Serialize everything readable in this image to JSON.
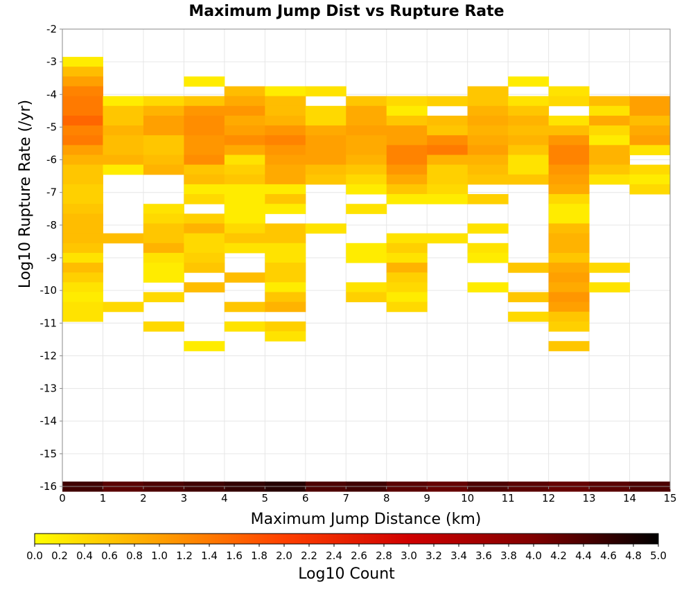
{
  "chart_data": {
    "type": "heatmap",
    "title": "Maximum Jump Dist vs Rupture Rate",
    "xlabel": "Maximum Jump Distance (km)",
    "ylabel": "Log10 Rupture Rate (/yr)",
    "xlim": [
      0,
      15
    ],
    "ylim": [
      -16,
      -2
    ],
    "x_ticks": [
      "0",
      "1",
      "2",
      "3",
      "4",
      "5",
      "6",
      "7",
      "8",
      "9",
      "10",
      "11",
      "12",
      "13",
      "14",
      "15"
    ],
    "y_ticks": [
      "-2",
      "-3",
      "-4",
      "-5",
      "-6",
      "-7",
      "-8",
      "-9",
      "-10",
      "-11",
      "-12",
      "-13",
      "-14",
      "-15",
      "-16"
    ],
    "grid": true,
    "colorbar": {
      "label": "Log10 Count",
      "range": [
        0,
        5
      ],
      "ticks": [
        "0.0",
        "0.2",
        "0.4",
        "0.6",
        "0.8",
        "1.0",
        "1.2",
        "1.4",
        "1.6",
        "1.8",
        "2.0",
        "2.2",
        "2.4",
        "2.6",
        "2.8",
        "3.0",
        "3.2",
        "3.4",
        "3.6",
        "3.8",
        "4.0",
        "4.2",
        "4.4",
        "4.6",
        "4.8",
        "5.0"
      ],
      "colors": [
        "#ffff00",
        "#ffa000",
        "#ff4000",
        "#d00000",
        "#800000",
        "#000000"
      ]
    },
    "x_bin_width": 1,
    "y_bin_height": 0.3,
    "bins": [
      {
        "x": 0,
        "cells": [
          [
            -3.0,
            0.2
          ],
          [
            -3.3,
            0.7
          ],
          [
            -3.6,
            1.0
          ],
          [
            -3.9,
            1.3
          ],
          [
            -4.2,
            1.4
          ],
          [
            -4.5,
            1.4
          ],
          [
            -4.8,
            1.6
          ],
          [
            -5.1,
            1.3
          ],
          [
            -5.4,
            1.4
          ],
          [
            -5.7,
            1.0
          ],
          [
            -6.0,
            0.8
          ],
          [
            -6.3,
            0.6
          ],
          [
            -6.6,
            0.6
          ],
          [
            -6.9,
            0.5
          ],
          [
            -7.2,
            0.5
          ],
          [
            -7.5,
            0.6
          ],
          [
            -7.8,
            0.7
          ],
          [
            -8.1,
            0.7
          ],
          [
            -8.4,
            0.7
          ],
          [
            -8.7,
            0.6
          ],
          [
            -9.0,
            0.3
          ],
          [
            -9.3,
            0.7
          ],
          [
            -9.6,
            0.5
          ],
          [
            -9.9,
            0.3
          ],
          [
            -10.2,
            0.2
          ],
          [
            -10.5,
            0.3
          ],
          [
            -10.8,
            0.3
          ],
          [
            -16.0,
            4.5
          ]
        ]
      },
      {
        "x": 1,
        "cells": [
          [
            -4.2,
            0.2
          ],
          [
            -4.5,
            0.6
          ],
          [
            -4.8,
            0.6
          ],
          [
            -5.1,
            0.8
          ],
          [
            -5.4,
            0.7
          ],
          [
            -5.7,
            0.7
          ],
          [
            -6.0,
            0.8
          ],
          [
            -6.3,
            0.2
          ],
          [
            -8.4,
            0.7
          ],
          [
            -10.5,
            0.4
          ],
          [
            -16.0,
            4.3
          ]
        ]
      },
      {
        "x": 2,
        "cells": [
          [
            -4.2,
            0.4
          ],
          [
            -4.5,
            0.8
          ],
          [
            -4.8,
            1.0
          ],
          [
            -5.1,
            1.0
          ],
          [
            -5.4,
            0.6
          ],
          [
            -5.7,
            0.6
          ],
          [
            -6.0,
            0.7
          ],
          [
            -6.3,
            0.8
          ],
          [
            -7.5,
            0.3
          ],
          [
            -7.8,
            0.4
          ],
          [
            -8.1,
            0.6
          ],
          [
            -8.4,
            0.6
          ],
          [
            -8.7,
            0.8
          ],
          [
            -9.0,
            0.3
          ],
          [
            -9.3,
            0.2
          ],
          [
            -9.6,
            0.2
          ],
          [
            -10.2,
            0.4
          ],
          [
            -11.1,
            0.4
          ],
          [
            -16.0,
            4.4
          ]
        ]
      },
      {
        "x": 3,
        "cells": [
          [
            -3.6,
            0.2
          ],
          [
            -4.2,
            0.6
          ],
          [
            -4.5,
            1.1
          ],
          [
            -4.8,
            1.2
          ],
          [
            -5.1,
            1.2
          ],
          [
            -5.4,
            1.1
          ],
          [
            -5.7,
            1.1
          ],
          [
            -6.0,
            1.2
          ],
          [
            -6.3,
            0.6
          ],
          [
            -6.6,
            0.7
          ],
          [
            -6.9,
            0.2
          ],
          [
            -7.2,
            0.4
          ],
          [
            -7.8,
            0.5
          ],
          [
            -8.1,
            0.8
          ],
          [
            -8.4,
            0.4
          ],
          [
            -8.7,
            0.4
          ],
          [
            -9.0,
            0.5
          ],
          [
            -9.3,
            0.6
          ],
          [
            -9.9,
            0.7
          ],
          [
            -11.7,
            0.2
          ],
          [
            -16.0,
            4.5
          ]
        ]
      },
      {
        "x": 4,
        "cells": [
          [
            -3.9,
            0.7
          ],
          [
            -4.2,
            0.9
          ],
          [
            -4.5,
            1.1
          ],
          [
            -4.8,
            0.9
          ],
          [
            -5.1,
            1.0
          ],
          [
            -5.4,
            1.2
          ],
          [
            -5.7,
            0.9
          ],
          [
            -6.0,
            0.3
          ],
          [
            -6.3,
            0.5
          ],
          [
            -6.6,
            0.6
          ],
          [
            -6.9,
            0.2
          ],
          [
            -7.2,
            0.2
          ],
          [
            -7.5,
            0.2
          ],
          [
            -7.8,
            0.2
          ],
          [
            -8.1,
            0.4
          ],
          [
            -8.4,
            0.6
          ],
          [
            -8.7,
            0.3
          ],
          [
            -9.6,
            0.7
          ],
          [
            -10.5,
            0.6
          ],
          [
            -11.1,
            0.3
          ],
          [
            -16.0,
            4.6
          ]
        ]
      },
      {
        "x": 5,
        "cells": [
          [
            -3.9,
            0.2
          ],
          [
            -4.2,
            0.7
          ],
          [
            -4.5,
            0.7
          ],
          [
            -4.8,
            0.8
          ],
          [
            -5.1,
            1.1
          ],
          [
            -5.4,
            1.3
          ],
          [
            -5.7,
            1.1
          ],
          [
            -6.0,
            1.0
          ],
          [
            -6.3,
            0.9
          ],
          [
            -6.6,
            0.9
          ],
          [
            -6.9,
            0.2
          ],
          [
            -7.2,
            0.6
          ],
          [
            -7.5,
            0.2
          ],
          [
            -8.1,
            0.6
          ],
          [
            -8.4,
            0.6
          ],
          [
            -8.7,
            0.3
          ],
          [
            -9.0,
            0.3
          ],
          [
            -9.3,
            0.5
          ],
          [
            -9.6,
            0.5
          ],
          [
            -9.9,
            0.2
          ],
          [
            -10.2,
            0.6
          ],
          [
            -10.5,
            0.8
          ],
          [
            -11.1,
            0.5
          ],
          [
            -11.4,
            0.3
          ],
          [
            -16.0,
            4.7
          ]
        ]
      },
      {
        "x": 6,
        "cells": [
          [
            -3.9,
            0.3
          ],
          [
            -4.5,
            0.4
          ],
          [
            -4.8,
            0.4
          ],
          [
            -5.1,
            0.9
          ],
          [
            -5.4,
            1.0
          ],
          [
            -5.7,
            1.0
          ],
          [
            -6.0,
            1.0
          ],
          [
            -6.3,
            0.7
          ],
          [
            -6.6,
            0.6
          ],
          [
            -8.1,
            0.3
          ],
          [
            -16.0,
            4.4
          ]
        ]
      },
      {
        "x": 7,
        "cells": [
          [
            -4.2,
            0.6
          ],
          [
            -4.5,
            0.9
          ],
          [
            -4.8,
            0.9
          ],
          [
            -5.1,
            1.0
          ],
          [
            -5.4,
            0.9
          ],
          [
            -5.7,
            0.9
          ],
          [
            -6.0,
            0.8
          ],
          [
            -6.3,
            0.6
          ],
          [
            -6.6,
            0.4
          ],
          [
            -6.9,
            0.2
          ],
          [
            -7.5,
            0.3
          ],
          [
            -8.7,
            0.2
          ],
          [
            -9.0,
            0.2
          ],
          [
            -9.9,
            0.3
          ],
          [
            -10.2,
            0.5
          ],
          [
            -16.0,
            4.5
          ]
        ]
      },
      {
        "x": 8,
        "cells": [
          [
            -4.2,
            0.4
          ],
          [
            -4.5,
            0.2
          ],
          [
            -4.8,
            0.6
          ],
          [
            -5.1,
            1.0
          ],
          [
            -5.4,
            1.0
          ],
          [
            -5.7,
            1.3
          ],
          [
            -6.0,
            1.3
          ],
          [
            -6.3,
            1.1
          ],
          [
            -6.6,
            0.9
          ],
          [
            -6.9,
            0.6
          ],
          [
            -7.2,
            0.2
          ],
          [
            -8.4,
            0.3
          ],
          [
            -8.7,
            0.5
          ],
          [
            -9.0,
            0.3
          ],
          [
            -9.3,
            0.8
          ],
          [
            -9.6,
            0.5
          ],
          [
            -9.9,
            0.4
          ],
          [
            -10.2,
            0.2
          ],
          [
            -10.5,
            0.4
          ],
          [
            -16.0,
            4.3
          ]
        ]
      },
      {
        "x": 9,
        "cells": [
          [
            -4.2,
            0.5
          ],
          [
            -4.8,
            0.7
          ],
          [
            -5.1,
            0.6
          ],
          [
            -5.4,
            1.2
          ],
          [
            -5.7,
            1.4
          ],
          [
            -6.0,
            0.8
          ],
          [
            -6.3,
            0.5
          ],
          [
            -6.6,
            0.5
          ],
          [
            -6.9,
            0.4
          ],
          [
            -7.2,
            0.2
          ],
          [
            -8.4,
            0.3
          ],
          [
            -16.0,
            4.2
          ]
        ]
      },
      {
        "x": 10,
        "cells": [
          [
            -3.9,
            0.6
          ],
          [
            -4.2,
            0.6
          ],
          [
            -4.5,
            0.8
          ],
          [
            -4.8,
            0.9
          ],
          [
            -5.1,
            0.8
          ],
          [
            -5.4,
            0.9
          ],
          [
            -5.7,
            1.0
          ],
          [
            -6.0,
            0.8
          ],
          [
            -6.3,
            0.7
          ],
          [
            -6.6,
            0.6
          ],
          [
            -7.2,
            0.5
          ],
          [
            -8.1,
            0.3
          ],
          [
            -8.7,
            0.3
          ],
          [
            -9.0,
            0.2
          ],
          [
            -9.9,
            0.2
          ],
          [
            -16.0,
            4.4
          ]
        ]
      },
      {
        "x": 11,
        "cells": [
          [
            -3.6,
            0.2
          ],
          [
            -4.2,
            0.3
          ],
          [
            -4.5,
            0.6
          ],
          [
            -4.8,
            0.8
          ],
          [
            -5.1,
            0.7
          ],
          [
            -5.4,
            0.8
          ],
          [
            -5.7,
            0.6
          ],
          [
            -6.0,
            0.3
          ],
          [
            -6.3,
            0.3
          ],
          [
            -6.6,
            0.6
          ],
          [
            -9.3,
            0.6
          ],
          [
            -10.2,
            0.6
          ],
          [
            -10.8,
            0.4
          ],
          [
            -16.0,
            4.3
          ]
        ]
      },
      {
        "x": 12,
        "cells": [
          [
            -3.9,
            0.3
          ],
          [
            -4.2,
            0.4
          ],
          [
            -4.8,
            0.3
          ],
          [
            -5.1,
            0.7
          ],
          [
            -5.4,
            1.1
          ],
          [
            -5.7,
            1.3
          ],
          [
            -6.0,
            1.3
          ],
          [
            -6.3,
            1.1
          ],
          [
            -6.6,
            1.0
          ],
          [
            -6.9,
            0.9
          ],
          [
            -7.2,
            0.4
          ],
          [
            -7.5,
            0.2
          ],
          [
            -7.8,
            0.2
          ],
          [
            -8.1,
            0.7
          ],
          [
            -8.4,
            0.8
          ],
          [
            -8.7,
            0.8
          ],
          [
            -9.0,
            0.6
          ],
          [
            -9.3,
            0.9
          ],
          [
            -9.6,
            1.0
          ],
          [
            -9.9,
            0.9
          ],
          [
            -10.2,
            1.1
          ],
          [
            -10.5,
            1.0
          ],
          [
            -10.8,
            0.6
          ],
          [
            -11.1,
            0.5
          ],
          [
            -11.7,
            0.6
          ],
          [
            -16.0,
            4.2
          ]
        ]
      },
      {
        "x": 13,
        "cells": [
          [
            -4.2,
            0.7
          ],
          [
            -4.5,
            0.3
          ],
          [
            -4.8,
            0.9
          ],
          [
            -5.1,
            0.4
          ],
          [
            -5.4,
            0.2
          ],
          [
            -5.7,
            0.8
          ],
          [
            -6.0,
            0.8
          ],
          [
            -6.3,
            0.6
          ],
          [
            -6.6,
            0.3
          ],
          [
            -9.3,
            0.4
          ],
          [
            -9.9,
            0.3
          ],
          [
            -16.0,
            4.3
          ]
        ]
      },
      {
        "x": 14,
        "cells": [
          [
            -4.2,
            1.0
          ],
          [
            -4.5,
            1.0
          ],
          [
            -4.8,
            0.7
          ],
          [
            -5.1,
            0.9
          ],
          [
            -5.4,
            1.0
          ],
          [
            -5.7,
            0.3
          ],
          [
            -6.3,
            0.4
          ],
          [
            -6.6,
            0.2
          ],
          [
            -6.9,
            0.4
          ],
          [
            -16.0,
            4.4
          ]
        ]
      }
    ]
  }
}
